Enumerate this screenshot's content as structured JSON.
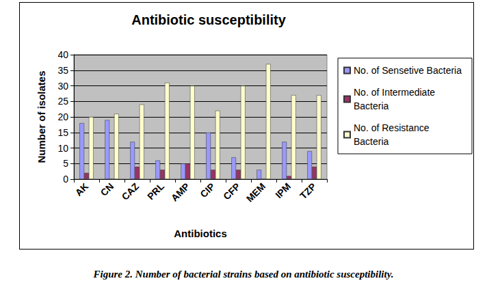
{
  "chart_data": {
    "type": "bar",
    "title": "Antibiotic susceptibility",
    "x_label": "Antibiotics",
    "y_label": "Number of isolates",
    "categories": [
      "AK",
      "CN",
      "CAZ",
      "PRL",
      "AMP",
      "CIP",
      "CFP",
      "MEM",
      "IPM",
      "TZP"
    ],
    "series": [
      {
        "name": "No. of Sensetive Bacteria",
        "color": "#9999ff",
        "values": [
          18,
          19,
          12,
          6,
          5,
          15,
          7,
          3,
          12,
          9
        ]
      },
      {
        "name": "No. of Intermediate Bacteria",
        "color": "#993366",
        "values": [
          2,
          0,
          4,
          3,
          5,
          3,
          3,
          0,
          1,
          4
        ]
      },
      {
        "name": "No. of Resistance Bacteria",
        "color": "#ffffcc",
        "values": [
          20,
          21,
          24,
          31,
          30,
          22,
          30,
          37,
          27,
          27
        ]
      }
    ],
    "ylim": [
      0,
      40
    ],
    "yticks": [
      0,
      5,
      10,
      15,
      20,
      25,
      30,
      35,
      40
    ],
    "grid": true,
    "legend": "right"
  },
  "caption": "Figure 2. Number of bacterial strains based on antibiotic susceptibility."
}
